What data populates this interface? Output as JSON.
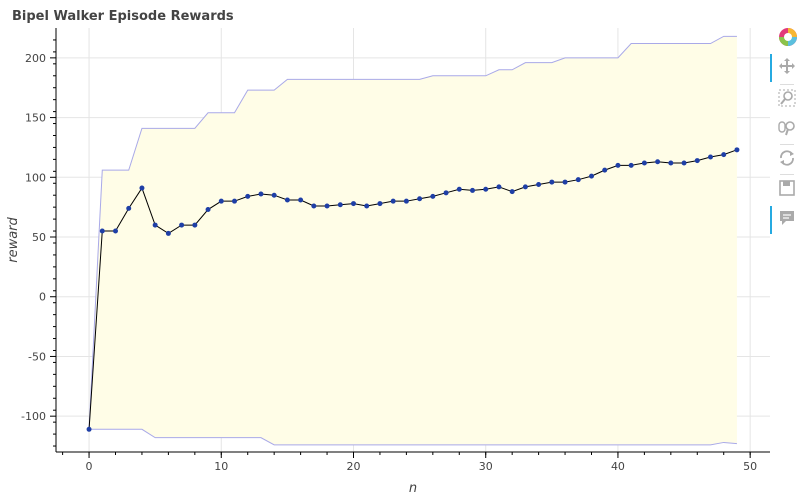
{
  "chart_data": {
    "type": "line",
    "title": "Bipel Walker Episode Rewards",
    "xlabel": "n",
    "ylabel": "reward",
    "xlim": [
      -2.5,
      51.5
    ],
    "ylim": [
      -130,
      225
    ],
    "x_ticks": [
      0,
      10,
      20,
      30,
      40,
      50
    ],
    "y_ticks": [
      -100,
      -50,
      0,
      50,
      100,
      150,
      200
    ],
    "x_tick_labels": [
      "0",
      "10",
      "20",
      "30",
      "40",
      "50"
    ],
    "y_tick_labels": [
      "-100",
      "-50",
      "0",
      "50",
      "100",
      "150",
      "200"
    ],
    "grid": true,
    "legend": "none",
    "x": [
      0,
      1,
      2,
      3,
      4,
      5,
      6,
      7,
      8,
      9,
      10,
      11,
      12,
      13,
      14,
      15,
      16,
      17,
      18,
      19,
      20,
      21,
      22,
      23,
      24,
      25,
      26,
      27,
      28,
      29,
      30,
      31,
      32,
      33,
      34,
      35,
      36,
      37,
      38,
      39,
      40,
      41,
      42,
      43,
      44,
      45,
      46,
      47,
      48,
      49
    ],
    "series": [
      {
        "role": "mean",
        "values": [
          -111,
          55,
          55,
          74,
          91,
          60,
          53,
          60,
          60,
          73,
          80,
          80,
          84,
          86,
          85,
          81,
          81,
          76,
          76,
          77,
          78,
          76,
          78,
          80,
          80,
          82,
          84,
          87,
          90,
          89,
          90,
          92,
          88,
          92,
          94,
          96,
          96,
          98,
          101,
          106,
          110,
          110,
          112,
          113,
          112,
          112,
          114,
          117,
          119,
          123
        ]
      },
      {
        "role": "upper-band",
        "values": [
          -111,
          106,
          106,
          106,
          141,
          141,
          141,
          141,
          141,
          154,
          154,
          154,
          173,
          173,
          173,
          182,
          182,
          182,
          182,
          182,
          182,
          182,
          182,
          182,
          182,
          182,
          185,
          185,
          185,
          185,
          185,
          190,
          190,
          196,
          196,
          196,
          200,
          200,
          200,
          200,
          200,
          212,
          212,
          212,
          212,
          212,
          212,
          212,
          218,
          218
        ]
      },
      {
        "role": "lower-band",
        "values": [
          -111,
          -111,
          -111,
          -111,
          -111,
          -118,
          -118,
          -118,
          -118,
          -118,
          -118,
          -118,
          -118,
          -118,
          -124,
          -124,
          -124,
          -124,
          -124,
          -124,
          -124,
          -124,
          -124,
          -124,
          -124,
          -124,
          -124,
          -124,
          -124,
          -124,
          -124,
          -124,
          -124,
          -124,
          -124,
          -124,
          -124,
          -124,
          -124,
          -124,
          -124,
          -124,
          -124,
          -124,
          -124,
          -124,
          -124,
          -124,
          -122,
          -123
        ]
      }
    ],
    "colors": {
      "band_fill": "#fffde7",
      "band_line": "#a9a9e8",
      "mean_line": "#000000",
      "marker": "#1f3fa6"
    }
  },
  "toolbar": {
    "items": [
      {
        "name": "bokeh-logo-icon",
        "active": false
      },
      {
        "name": "pan-icon",
        "active": true
      },
      {
        "name": "box-zoom-icon",
        "active": false
      },
      {
        "name": "wheel-zoom-icon",
        "active": false
      },
      {
        "name": "reset-icon",
        "active": false
      },
      {
        "name": "save-icon",
        "active": false
      },
      {
        "name": "hover-icon",
        "active": true
      }
    ]
  }
}
